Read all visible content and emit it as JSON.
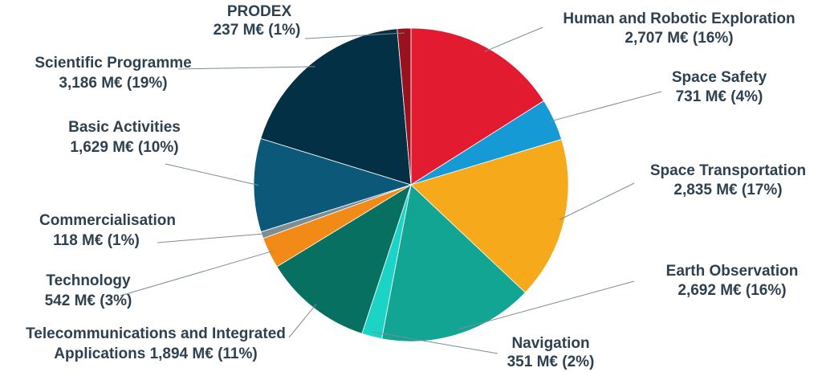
{
  "chart_data": {
    "type": "pie",
    "unit": "M€",
    "start_angle_deg": 0,
    "direction": "clockwise",
    "slices": [
      {
        "name": "Human and Robotic Exploration",
        "value": 2707,
        "percent": "16%",
        "value_label": "2,707 M€",
        "color": "#e31b31"
      },
      {
        "name": "Space Safety",
        "value": 731,
        "percent": "4%",
        "value_label": "731 M€",
        "color": "#159ad6"
      },
      {
        "name": "Space Transportation",
        "value": 2835,
        "percent": "17%",
        "value_label": "2,835 M€",
        "color": "#f6a91a"
      },
      {
        "name": "Earth Observation",
        "value": 2692,
        "percent": "16%",
        "value_label": "2,692 M€",
        "color": "#12a594"
      },
      {
        "name": "Navigation",
        "value": 351,
        "percent": "2%",
        "value_label": "351 M€",
        "color": "#1cd4c6"
      },
      {
        "name": "Telecommunications and Integrated Applications",
        "value": 1894,
        "percent": "11%",
        "value_label": "1,894 M€",
        "color": "#077060"
      },
      {
        "name": "Technology",
        "value": 542,
        "percent": "3%",
        "value_label": "542 M€",
        "color": "#f28a18"
      },
      {
        "name": "Commercialisation",
        "value": 118,
        "percent": "1%",
        "value_label": "118 M€",
        "color": "#7d8d96"
      },
      {
        "name": "Basic Activities",
        "value": 1629,
        "percent": "10%",
        "value_label": "1,629 M€",
        "color": "#0b5878"
      },
      {
        "name": "Scientific Programme",
        "value": 3186,
        "percent": "19%",
        "value_label": "3,186 M€",
        "color": "#033044"
      },
      {
        "name": "PRODEX",
        "value": 237,
        "percent": "1%",
        "value_label": "237 M€",
        "color": "#99121f"
      }
    ]
  }
}
